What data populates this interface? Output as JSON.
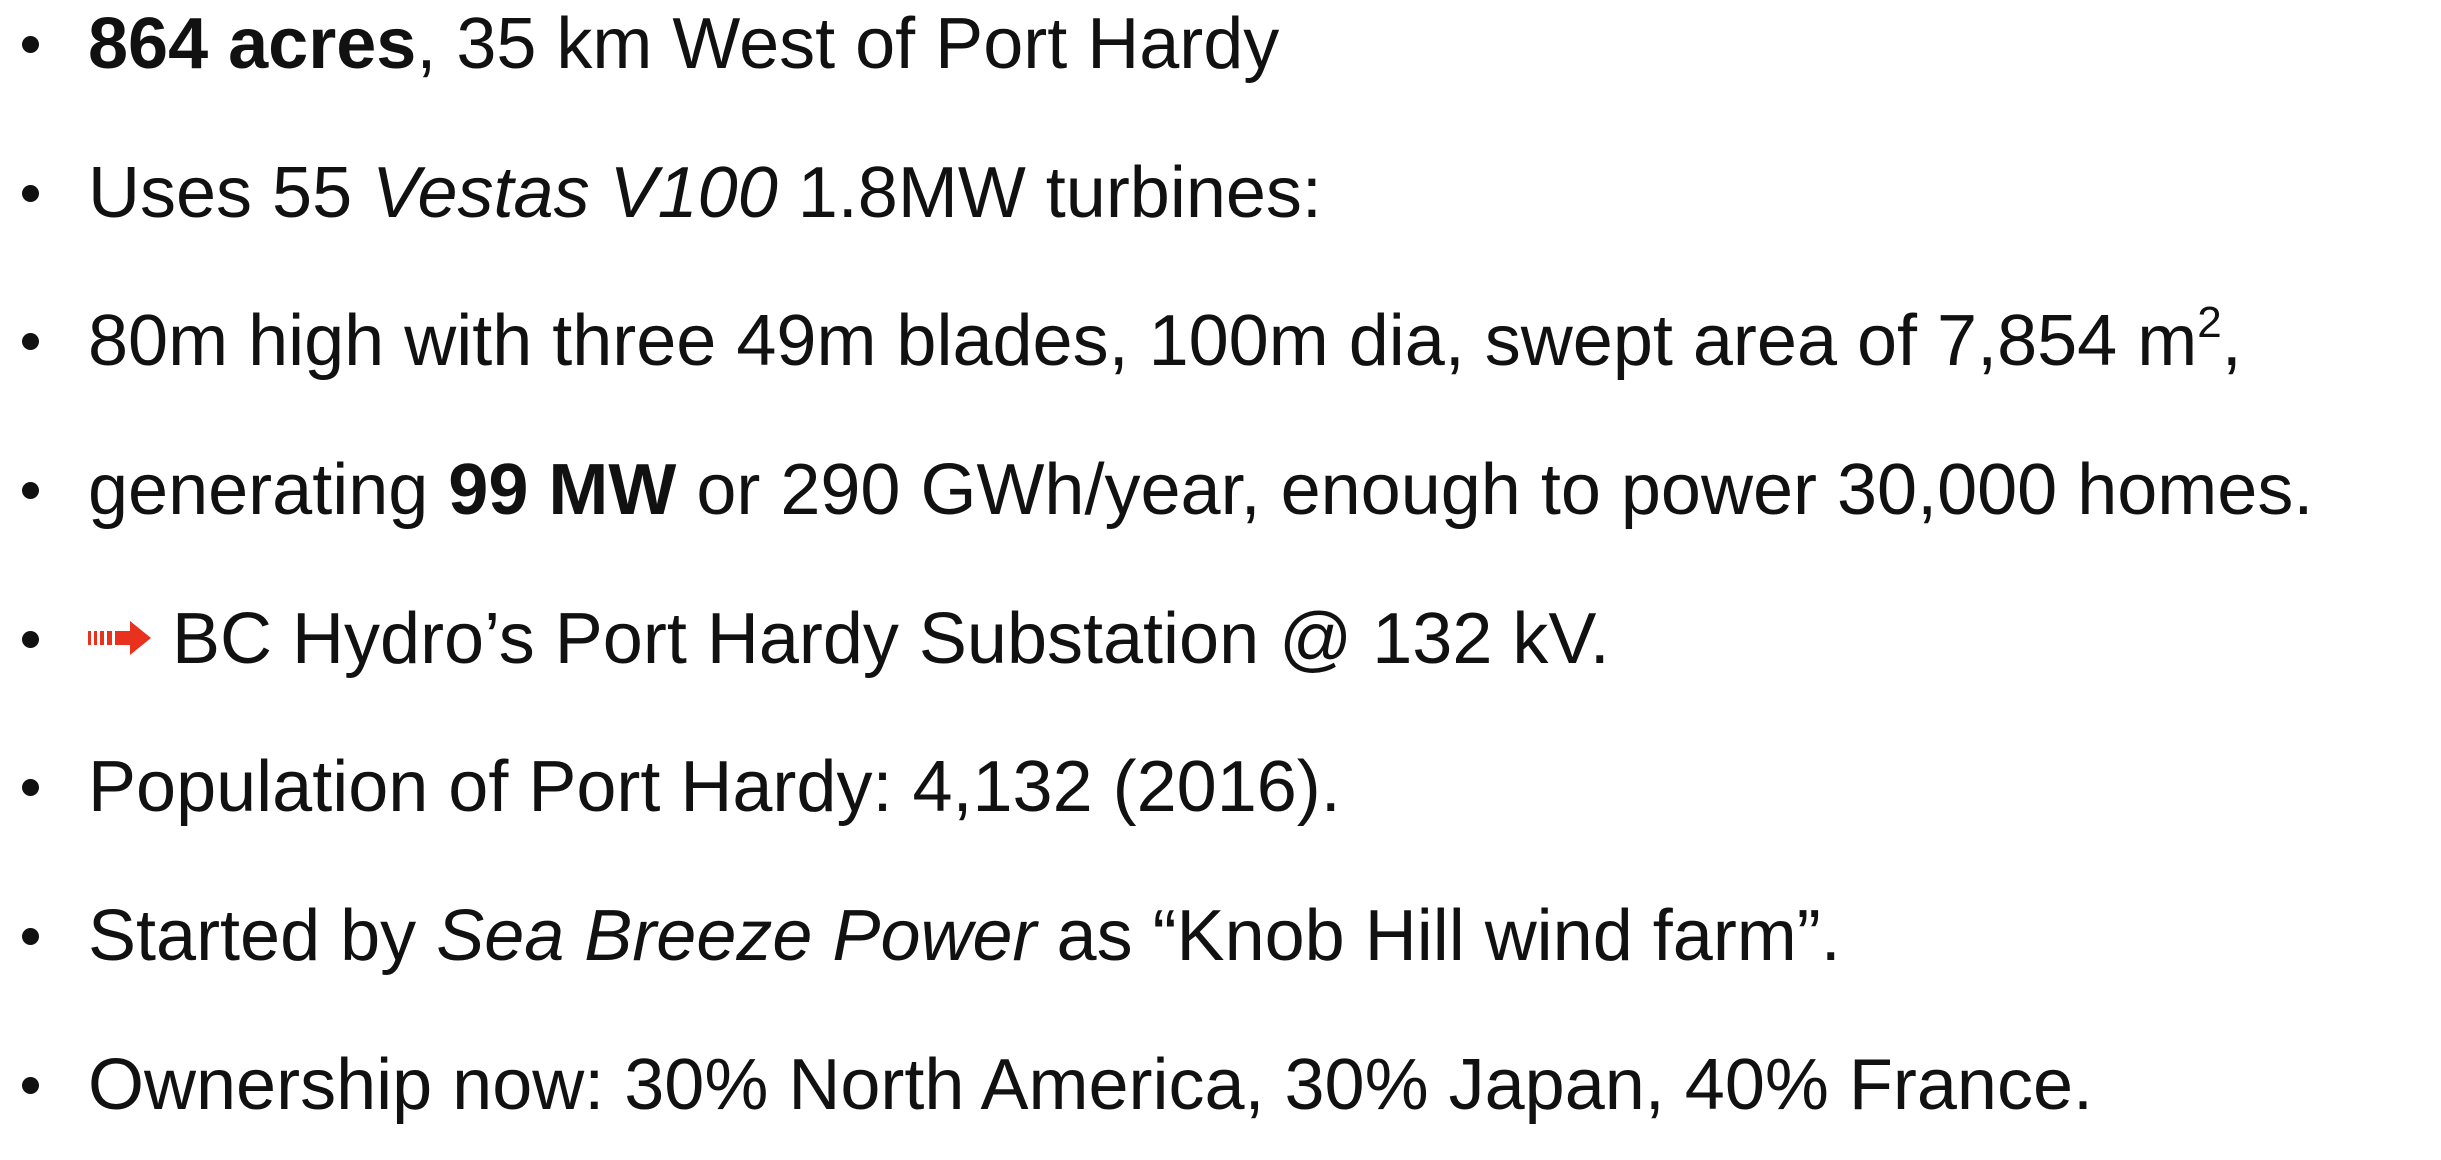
{
  "bullets": [
    [
      "864 acres",
      ", 35 km West of Port Hardy"
    ],
    [
      "Uses 55 ",
      "Vestas V100",
      " 1.8MW turbines:"
    ],
    [
      "80m high with three 49m blades, 100m dia, swept area of 7,854 m",
      "2",
      ","
    ],
    [
      "generating ",
      "99 MW",
      " or 290 GWh/year, enough to power 30,000 homes."
    ],
    [
      "BC Hydro’s Port Hardy Substation @ 132 kV."
    ],
    [
      "Population of Port Hardy: 4,132 (2016)."
    ],
    [
      "Started by ",
      "Sea Breeze Power",
      " as “Knob Hill wind farm”."
    ],
    [
      "Ownership now: 30% North America, 30% Japan, 40% France."
    ]
  ]
}
